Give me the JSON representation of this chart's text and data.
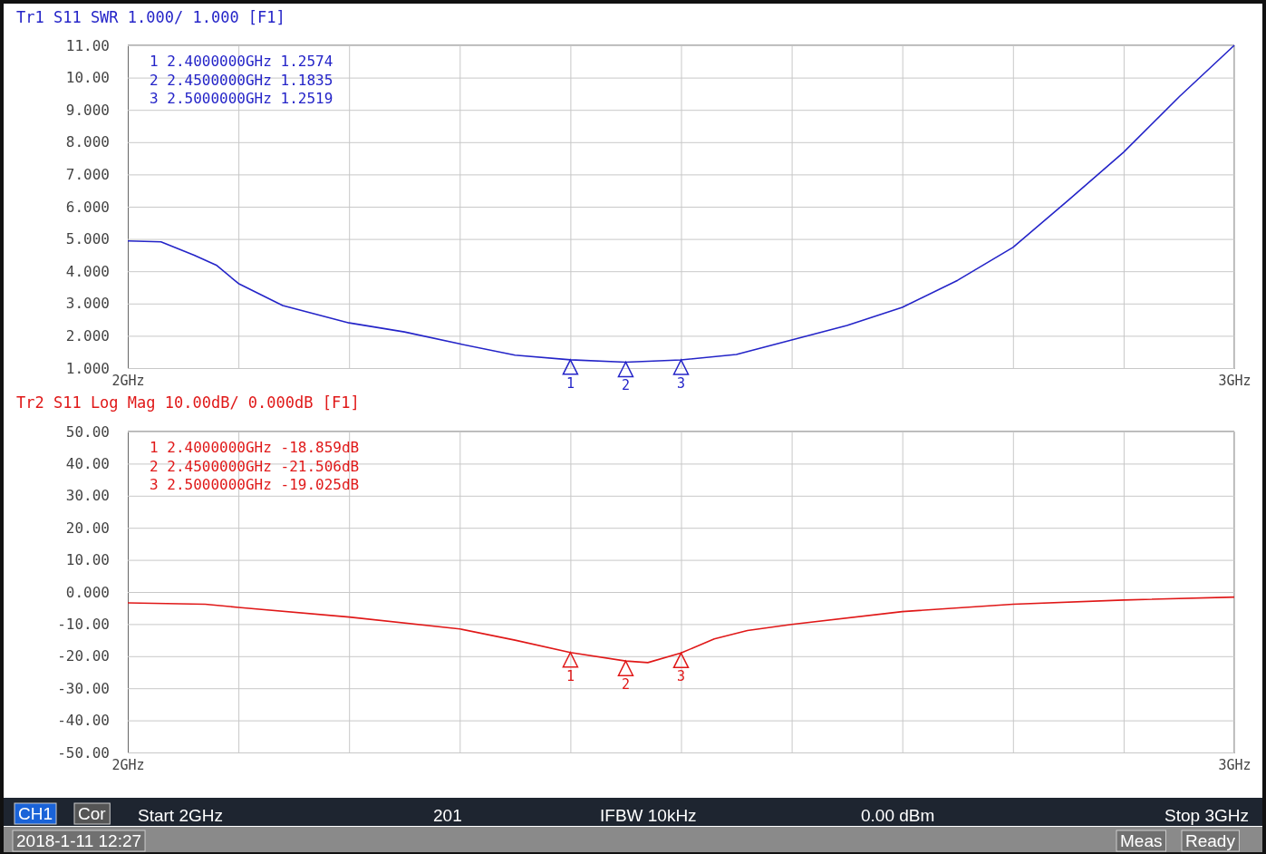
{
  "chart_data": [
    {
      "type": "line",
      "title": "Tr1 S11 SWR 1.000/ 1.000 [F1]",
      "xlim": [
        2,
        3
      ],
      "xticks": [
        {
          "value": 2,
          "label": "2GHz"
        },
        {
          "value": 2.1,
          "label": null
        },
        {
          "value": 2.2,
          "label": null
        },
        {
          "value": 2.3,
          "label": null
        },
        {
          "value": 2.4,
          "label": null
        },
        {
          "value": 2.5,
          "label": null
        },
        {
          "value": 2.6,
          "label": null
        },
        {
          "value": 2.7,
          "label": null
        },
        {
          "value": 2.8,
          "label": null
        },
        {
          "value": 2.9,
          "label": null
        },
        {
          "value": 3,
          "label": "3GHz"
        }
      ],
      "ylim": [
        1,
        11
      ],
      "yticks": [
        {
          "value": 1,
          "label": "1.000"
        },
        {
          "value": 2,
          "label": "2.000"
        },
        {
          "value": 3,
          "label": "3.000"
        },
        {
          "value": 4,
          "label": "4.000"
        },
        {
          "value": 5,
          "label": "5.000"
        },
        {
          "value": 6,
          "label": "6.000"
        },
        {
          "value": 7,
          "label": "7.000"
        },
        {
          "value": 8,
          "label": "8.000"
        },
        {
          "value": 9,
          "label": "9.000"
        },
        {
          "value": 10,
          "label": "10.00"
        },
        {
          "value": 11,
          "label": "11.00"
        }
      ],
      "grid": true,
      "marker": "none",
      "line_style": "solid",
      "series": [
        {
          "color": "#2424c8",
          "x": [
            2,
            2.03,
            2.06,
            2.08,
            2.1,
            2.14,
            2.2,
            2.25,
            2.3,
            2.35,
            2.4,
            2.45,
            2.5,
            2.55,
            2.6,
            2.65,
            2.7,
            2.75,
            2.8,
            2.85,
            2.9,
            2.95,
            3
          ],
          "values": [
            4.94,
            4.91,
            4.5,
            4.19,
            3.62,
            2.94,
            2.4,
            2.12,
            1.75,
            1.4,
            1.2574,
            1.1835,
            1.2519,
            1.42,
            1.87,
            2.32,
            2.88,
            3.72,
            4.74,
            6.2,
            7.69,
            9.4,
            11
          ]
        }
      ],
      "annotations": [
        "1 2.4000000GHz 1.2574",
        "2 2.4500000GHz 1.1835",
        "3 2.5000000GHz 1.2519",
        {
          "text": "1",
          "x": 2.4,
          "y": 1.2574
        },
        {
          "text": "2",
          "x": 2.45,
          "y": 1.1835
        },
        {
          "text": "3",
          "x": 2.5,
          "y": 1.2519
        }
      ]
    },
    {
      "type": "line",
      "title": "Tr2 S11 Log Mag 10.00dB/ 0.000dB [F1]",
      "xlim": [
        2,
        3
      ],
      "xticks": [
        {
          "value": 2,
          "label": "2GHz"
        },
        {
          "value": 2.1,
          "label": null
        },
        {
          "value": 2.2,
          "label": null
        },
        {
          "value": 2.3,
          "label": null
        },
        {
          "value": 2.4,
          "label": null
        },
        {
          "value": 2.5,
          "label": null
        },
        {
          "value": 2.6,
          "label": null
        },
        {
          "value": 2.7,
          "label": null
        },
        {
          "value": 2.8,
          "label": null
        },
        {
          "value": 2.9,
          "label": null
        },
        {
          "value": 3,
          "label": "3GHz"
        }
      ],
      "ylim": [
        -50,
        50
      ],
      "yticks": [
        {
          "value": -50,
          "label": "-50.00"
        },
        {
          "value": -40,
          "label": "-40.00"
        },
        {
          "value": -30,
          "label": "-30.00"
        },
        {
          "value": -20,
          "label": "-20.00"
        },
        {
          "value": -10,
          "label": "-10.00"
        },
        {
          "value": 0,
          "label": "0.000"
        },
        {
          "value": 10,
          "label": "10.00"
        },
        {
          "value": 20,
          "label": "20.00"
        },
        {
          "value": 30,
          "label": "30.00"
        },
        {
          "value": 40,
          "label": "40.00"
        },
        {
          "value": 50,
          "label": "50.00"
        }
      ],
      "grid": true,
      "marker": "none",
      "line_style": "solid",
      "series": [
        {
          "color": "#e01818",
          "x": [
            2,
            2.07,
            2.1,
            2.2,
            2.3,
            2.35,
            2.4,
            2.45,
            2.47,
            2.5,
            2.53,
            2.56,
            2.6,
            2.7,
            2.8,
            2.9,
            3
          ],
          "values": [
            -3.4,
            -3.8,
            -4.8,
            -7.8,
            -11.5,
            -15,
            -18.859,
            -21.506,
            -22,
            -19.025,
            -14.6,
            -12,
            -10.1,
            -6.1,
            -3.8,
            -2.5,
            -1.6
          ]
        }
      ],
      "annotations": [
        "1 2.4000000GHz -18.859dB",
        "2 2.4500000GHz -21.506dB",
        "3 2.5000000GHz -19.025dB",
        {
          "text": "1",
          "x": 2.4,
          "y": -18.859
        },
        {
          "text": "2",
          "x": 2.45,
          "y": -21.506
        },
        {
          "text": "3",
          "x": 2.5,
          "y": -19.025
        }
      ]
    },
    {
      "type": "other",
      "annotations": [
        "CH1",
        "Cor",
        "Start 2GHz",
        "201",
        "IFBW 10kHz",
        "0.00 dBm",
        "Stop 3GHz",
        "2018-1-11 12:27",
        "Meas",
        "Ready"
      ]
    }
  ]
}
